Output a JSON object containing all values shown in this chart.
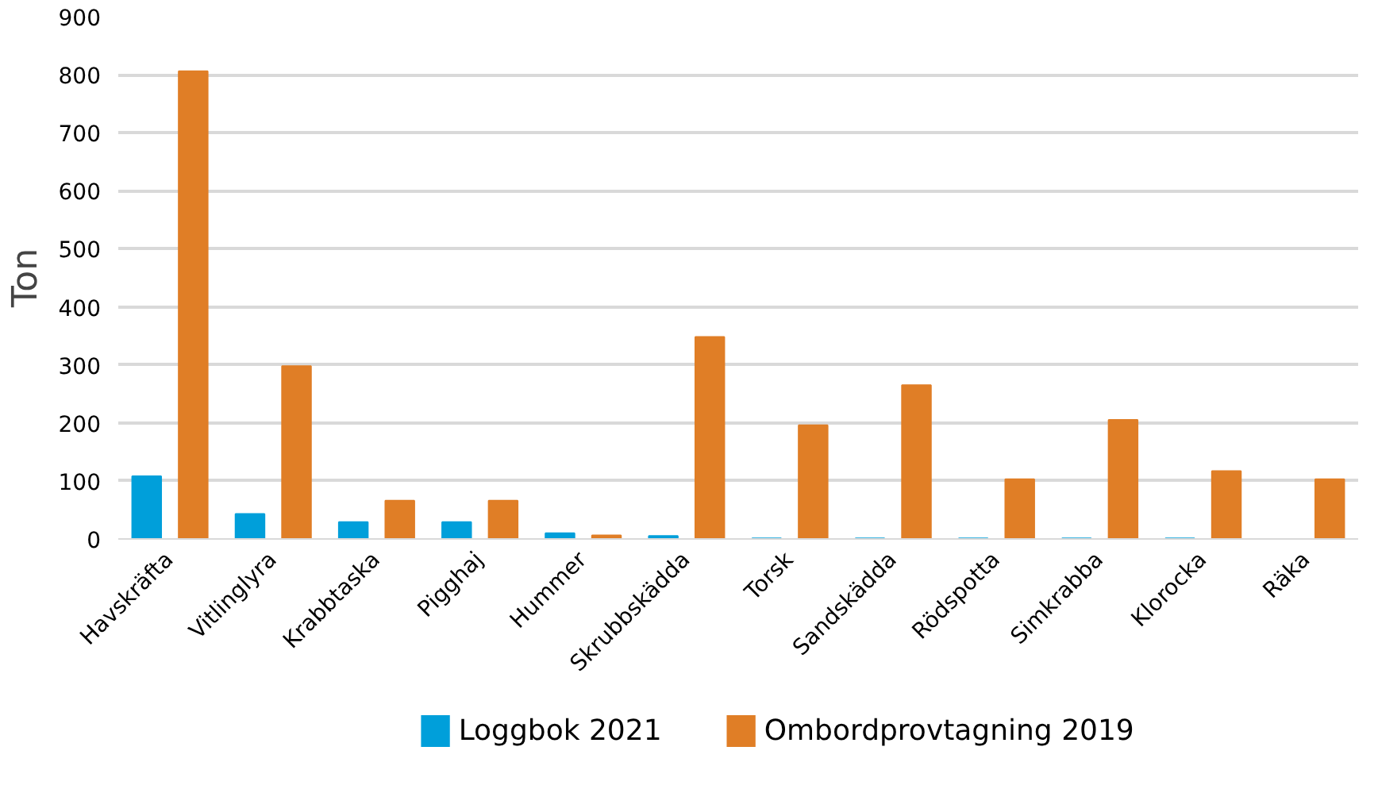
{
  "chart_data": {
    "type": "bar",
    "ylabel": "Ton",
    "categories": [
      "Havskräfta",
      "Vitlinglyra",
      "Krabbtaska",
      "Pigghaj",
      "Hummer",
      "Skrubbskädda",
      "Torsk",
      "Sandskädda",
      "Rödspotta",
      "Simkrabba",
      "Klorocka",
      "Räka"
    ],
    "series": [
      {
        "name": "Loggbok 2021",
        "color": "#009fda",
        "values": [
          108,
          43,
          29,
          29,
          10,
          5,
          1,
          1,
          1,
          1,
          1,
          null
        ]
      },
      {
        "name": "Ombordprovtagning 2019",
        "color": "#e07e26",
        "values": [
          806,
          298,
          66,
          66,
          6,
          348,
          196,
          265,
          103,
          205,
          117,
          103
        ]
      }
    ],
    "ylim": [
      0,
      900
    ],
    "yticks": [
      0,
      100,
      200,
      300,
      400,
      500,
      600,
      700,
      800,
      900
    ],
    "grid": "y",
    "legend": "bottom"
  }
}
